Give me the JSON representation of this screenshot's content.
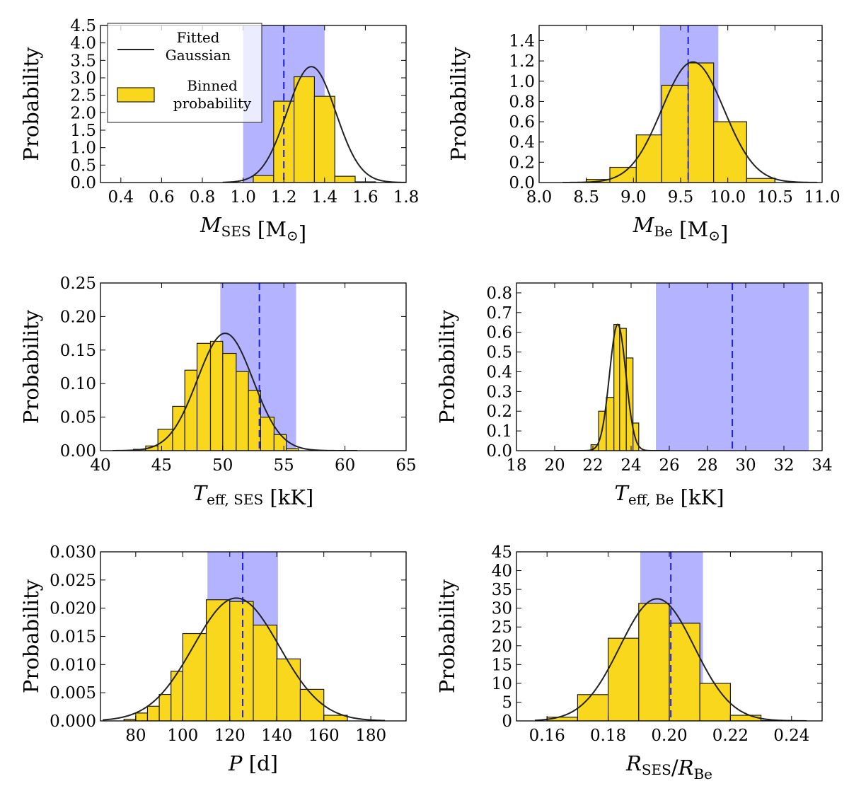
{
  "figure": {
    "ylabel": "Probability"
  },
  "colors": {
    "bar_fill": "#f9d71c",
    "bar_edge": "#1a1a1a",
    "band": "#b3b3ff",
    "dashed": "#2020e0",
    "curve": "#222222"
  },
  "legend": {
    "curve_label": "Fitted Gaussian",
    "curve_lines": [
      "Fitted",
      "Gaussian"
    ],
    "bar_label": "Binned probability",
    "bar_lines": [
      "Binned",
      "probability"
    ]
  },
  "chart_data": [
    {
      "id": "m_ses",
      "type": "bar",
      "xlabel": {
        "sym": "M",
        "sub": "SES",
        "unit": " [M",
        "unit_sub": "⊙",
        "unit_end": "]"
      },
      "ylabel": "Probability",
      "xlim": [
        0.3,
        1.8
      ],
      "ylim": [
        0,
        4.5
      ],
      "xticks": [
        0.4,
        0.6,
        0.8,
        1.0,
        1.2,
        1.4,
        1.6,
        1.8
      ],
      "xdec": 1,
      "yticks": [
        0.0,
        0.5,
        1.0,
        1.5,
        2.0,
        2.5,
        3.0,
        3.5,
        4.0,
        4.5
      ],
      "ydec": 1,
      "band": [
        1.0,
        1.4
      ],
      "dashed": 1.2,
      "gauss": {
        "mu": 1.335,
        "sigma": 0.12,
        "peak": 3.32,
        "lo": 0.9,
        "hi": 1.8
      },
      "bins": [
        [
          1.05,
          1.15,
          0.2
        ],
        [
          1.15,
          1.25,
          2.33
        ],
        [
          1.25,
          1.35,
          3.03
        ],
        [
          1.35,
          1.45,
          2.47
        ],
        [
          1.45,
          1.55,
          0.18
        ],
        [
          1.55,
          1.65,
          0.02
        ]
      ],
      "legend": true
    },
    {
      "id": "m_be",
      "type": "bar",
      "xlabel": {
        "sym": "M",
        "sub": "Be",
        "unit": " [M",
        "unit_sub": "⊙",
        "unit_end": "]"
      },
      "ylabel": "Probability",
      "xlim": [
        8.0,
        11.0
      ],
      "ylim": [
        0,
        1.55
      ],
      "xticks": [
        8.0,
        8.5,
        9.0,
        9.5,
        10.0,
        10.5,
        11.0
      ],
      "xdec": 1,
      "yticks": [
        0.0,
        0.2,
        0.4,
        0.6,
        0.8,
        1.0,
        1.2,
        1.4
      ],
      "ydec": 1,
      "band": [
        9.28,
        9.9
      ],
      "dashed": 9.58,
      "gauss": {
        "mu": 9.63,
        "sigma": 0.33,
        "peak": 1.19,
        "lo": 8.25,
        "hi": 10.95
      },
      "bins": [
        [
          8.5,
          8.75,
          0.03
        ],
        [
          8.75,
          9.03,
          0.15
        ],
        [
          9.03,
          9.3,
          0.47
        ],
        [
          9.3,
          9.58,
          0.96
        ],
        [
          9.58,
          9.85,
          1.18
        ],
        [
          9.85,
          10.2,
          0.6
        ],
        [
          10.2,
          10.5,
          0.04
        ]
      ],
      "legend": false
    },
    {
      "id": "teff_ses",
      "type": "bar",
      "xlabel": {
        "sym": "T",
        "sub": "eff, SES",
        "unit": " [kK]",
        "unit_sub": "",
        "unit_end": ""
      },
      "ylabel": "Probability",
      "xlim": [
        40,
        65
      ],
      "ylim": [
        0,
        0.25
      ],
      "xticks": [
        40,
        45,
        50,
        55,
        60,
        65
      ],
      "xdec": 0,
      "yticks": [
        0.0,
        0.05,
        0.1,
        0.15,
        0.2,
        0.25
      ],
      "ydec": 2,
      "band": [
        49.8,
        56.0
      ],
      "dashed": 53.0,
      "gauss": {
        "mu": 50.2,
        "sigma": 2.27,
        "peak": 0.175,
        "lo": 41.0,
        "hi": 61.0
      },
      "bins": [
        [
          42.7,
          43.7,
          0.002
        ],
        [
          43.7,
          44.7,
          0.007
        ],
        [
          44.7,
          45.9,
          0.032
        ],
        [
          45.9,
          46.9,
          0.066
        ],
        [
          46.9,
          47.9,
          0.12
        ],
        [
          47.9,
          49.0,
          0.16
        ],
        [
          49.0,
          50.0,
          0.163
        ],
        [
          50.0,
          51.1,
          0.145
        ],
        [
          51.1,
          52.1,
          0.118
        ],
        [
          52.1,
          53.1,
          0.09
        ],
        [
          53.1,
          54.2,
          0.05
        ],
        [
          54.2,
          55.2,
          0.024
        ],
        [
          55.2,
          56.2,
          0.003
        ]
      ],
      "legend": false
    },
    {
      "id": "teff_be",
      "type": "bar",
      "xlabel": {
        "sym": "T",
        "sub": "eff, Be",
        "unit": " [kK]",
        "unit_sub": "",
        "unit_end": ""
      },
      "ylabel": "Probability",
      "xlim": [
        18,
        34
      ],
      "ylim": [
        0,
        0.85
      ],
      "xticks": [
        18,
        20,
        22,
        24,
        26,
        28,
        30,
        32,
        34
      ],
      "xdec": 0,
      "yticks": [
        0.0,
        0.1,
        0.2,
        0.3,
        0.4,
        0.5,
        0.6,
        0.7,
        0.8
      ],
      "ydec": 1,
      "band": [
        25.3,
        33.3
      ],
      "dashed": 29.3,
      "gauss": {
        "mu": 23.3,
        "sigma": 0.43,
        "peak": 0.64,
        "lo": 20.0,
        "hi": 26.0
      },
      "bins": [
        [
          21.9,
          22.3,
          0.03
        ],
        [
          22.3,
          22.7,
          0.2
        ],
        [
          22.7,
          23.1,
          0.27
        ],
        [
          23.1,
          23.4,
          0.64
        ],
        [
          23.4,
          23.75,
          0.62
        ],
        [
          23.75,
          24.1,
          0.47
        ],
        [
          24.1,
          24.4,
          0.14
        ]
      ],
      "legend": false
    },
    {
      "id": "period",
      "type": "bar",
      "xlabel": {
        "sym": "P",
        "sub": "",
        "unit": " [d]",
        "unit_sub": "",
        "unit_end": ""
      },
      "ylabel": "Probability",
      "xlim": [
        65,
        195
      ],
      "ylim": [
        0,
        0.03
      ],
      "xticks": [
        80,
        100,
        120,
        140,
        160,
        180
      ],
      "xdec": 0,
      "yticks": [
        0.0,
        0.005,
        0.01,
        0.015,
        0.02,
        0.025,
        0.03
      ],
      "ydec": 3,
      "band": [
        110.5,
        140.5
      ],
      "dashed": 125.5,
      "gauss": {
        "mu": 122.8,
        "sigma": 18.3,
        "peak": 0.0218,
        "lo": 66.0,
        "hi": 186.0
      },
      "bins": [
        [
          75,
          80,
          0.0003
        ],
        [
          80,
          85,
          0.0014
        ],
        [
          85,
          90,
          0.0026
        ],
        [
          90,
          95,
          0.0047
        ],
        [
          95,
          100,
          0.0088
        ],
        [
          100,
          110,
          0.0155
        ],
        [
          110,
          120,
          0.0215
        ],
        [
          120,
          130,
          0.0212
        ],
        [
          130,
          140,
          0.017
        ],
        [
          140,
          150,
          0.011
        ],
        [
          150,
          160,
          0.0056
        ],
        [
          160,
          170,
          0.001
        ]
      ],
      "legend": false
    },
    {
      "id": "radius_ratio",
      "type": "bar",
      "xlabel": {
        "sym": "R",
        "sub": "SES",
        "unit": "/",
        "unit_sym": "R",
        "unit_sub": "Be",
        "unit_end": ""
      },
      "ylabel": "Probability",
      "xlim": [
        0.15,
        0.25
      ],
      "ylim": [
        0,
        45
      ],
      "xticks": [
        0.16,
        0.18,
        0.2,
        0.22,
        0.24
      ],
      "xdec": 2,
      "yticks": [
        0,
        5,
        10,
        15,
        20,
        25,
        30,
        35,
        40,
        45
      ],
      "ydec": 0,
      "band": [
        0.1905,
        0.211
      ],
      "dashed": 0.2005,
      "gauss": {
        "mu": 0.196,
        "sigma": 0.0122,
        "peak": 32.5,
        "lo": 0.156,
        "hi": 0.245
      },
      "bins": [
        [
          0.16,
          0.17,
          1.0
        ],
        [
          0.17,
          0.18,
          7.0
        ],
        [
          0.18,
          0.19,
          22.0
        ],
        [
          0.19,
          0.2,
          31.3
        ],
        [
          0.2,
          0.21,
          26.0
        ],
        [
          0.21,
          0.22,
          10.0
        ],
        [
          0.22,
          0.23,
          1.5
        ],
        [
          0.23,
          0.24,
          0.1
        ]
      ],
      "legend": false
    }
  ]
}
